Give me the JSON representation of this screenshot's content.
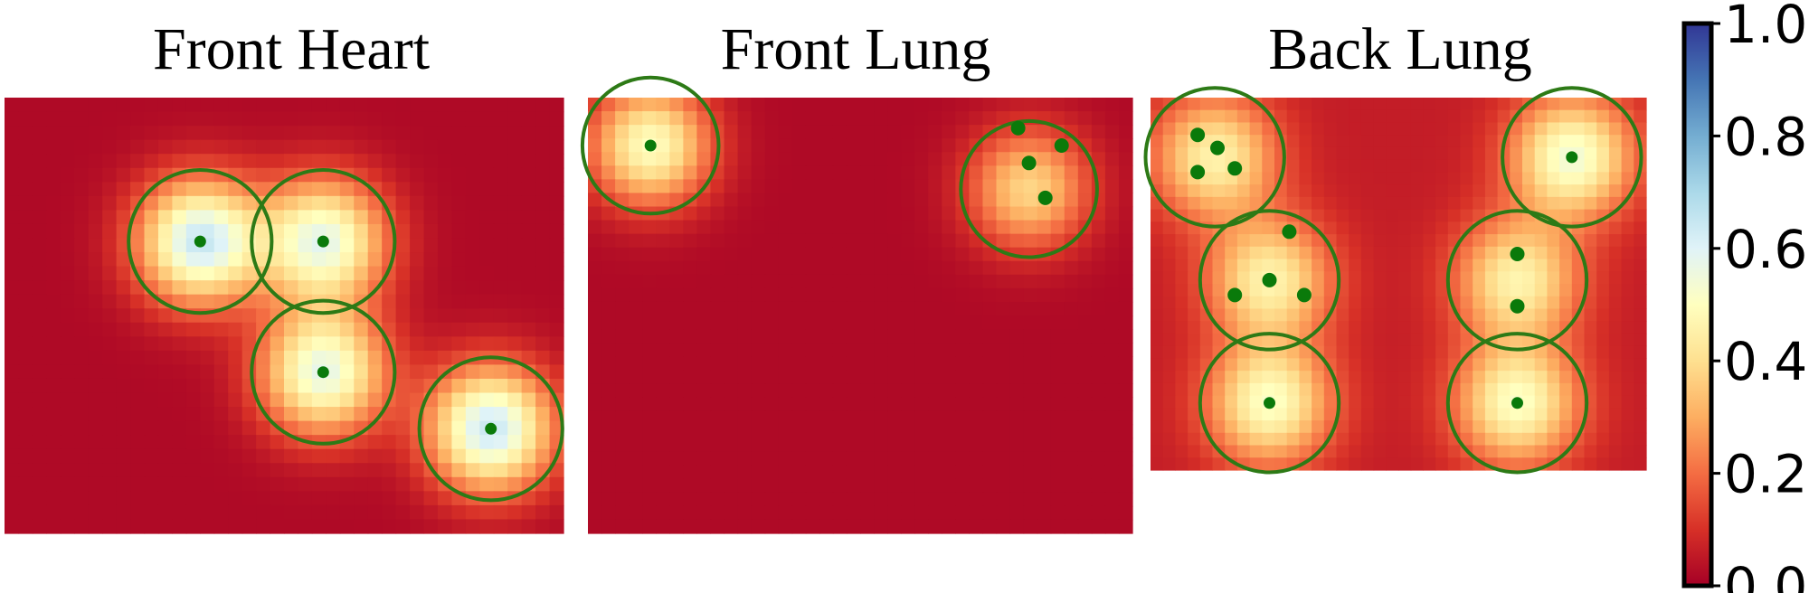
{
  "chart_data": [
    {
      "type": "heatmap",
      "title": "Front Heart",
      "x_range": [
        0,
        1
      ],
      "y_range": [
        0,
        1
      ],
      "background_value": 0.02,
      "circle_radius": 0.128,
      "circle_color": "#2d7a16",
      "point_color": "#0a7a0a",
      "regions": [
        {
          "cx": 0.35,
          "cy": 0.33,
          "peak": 0.62,
          "points": [
            [
              0.35,
              0.33
            ]
          ]
        },
        {
          "cx": 0.57,
          "cy": 0.33,
          "peak": 0.55,
          "points": [
            [
              0.57,
              0.33
            ]
          ]
        },
        {
          "cx": 0.57,
          "cy": 0.63,
          "peak": 0.55,
          "points": [
            [
              0.57,
              0.63
            ]
          ]
        },
        {
          "cx": 0.87,
          "cy": 0.76,
          "peak": 0.62,
          "points": [
            [
              0.87,
              0.76
            ]
          ]
        }
      ]
    },
    {
      "type": "heatmap",
      "title": "Front Lung",
      "x_range": [
        0,
        1
      ],
      "y_range": [
        0,
        1
      ],
      "background_value": 0.02,
      "circle_radius": 0.125,
      "circle_color": "#2d7a16",
      "point_color": "#0a7a0a",
      "regions": [
        {
          "cx": 0.115,
          "cy": 0.11,
          "peak": 0.48,
          "points": [
            [
              0.115,
              0.11
            ]
          ]
        },
        {
          "cx": 0.81,
          "cy": 0.21,
          "peak": 0.36,
          "points": [
            [
              0.79,
              0.07
            ],
            [
              0.87,
              0.11
            ],
            [
              0.81,
              0.15
            ],
            [
              0.84,
              0.23
            ]
          ]
        }
      ]
    },
    {
      "type": "heatmap",
      "title": "Back Lung",
      "x_range": [
        0,
        1
      ],
      "y_range": [
        0,
        1
      ],
      "background_value": 0.06,
      "circle_radius": 0.14,
      "circle_color": "#2d7a16",
      "point_color": "#0a7a0a",
      "regions": [
        {
          "cx": 0.13,
          "cy": 0.16,
          "peak": 0.4,
          "points": [
            [
              0.095,
              0.1
            ],
            [
              0.135,
              0.135
            ],
            [
              0.095,
              0.2
            ],
            [
              0.17,
              0.19
            ]
          ]
        },
        {
          "cx": 0.85,
          "cy": 0.16,
          "peak": 0.48,
          "points": [
            [
              0.85,
              0.16
            ]
          ]
        },
        {
          "cx": 0.24,
          "cy": 0.49,
          "peak": 0.4,
          "points": [
            [
              0.28,
              0.36
            ],
            [
              0.17,
              0.53
            ],
            [
              0.24,
              0.49
            ],
            [
              0.31,
              0.53
            ]
          ]
        },
        {
          "cx": 0.74,
          "cy": 0.49,
          "peak": 0.4,
          "points": [
            [
              0.74,
              0.42
            ],
            [
              0.74,
              0.56
            ]
          ]
        },
        {
          "cx": 0.24,
          "cy": 0.82,
          "peak": 0.45,
          "points": [
            [
              0.24,
              0.82
            ]
          ]
        },
        {
          "cx": 0.74,
          "cy": 0.82,
          "peak": 0.45,
          "points": [
            [
              0.74,
              0.82
            ]
          ]
        }
      ]
    }
  ],
  "colorbar": {
    "colormap": "RdYlBu",
    "min": 0.0,
    "max": 1.0,
    "ticks": [
      "0.0",
      "0.2",
      "0.4",
      "0.6",
      "0.8",
      "1.0"
    ],
    "stops": [
      "#a50026",
      "#d73027",
      "#f46d43",
      "#fdae61",
      "#fee090",
      "#ffffbf",
      "#e0f3f8",
      "#abd9e9",
      "#74add1",
      "#4575b4",
      "#313695"
    ]
  }
}
